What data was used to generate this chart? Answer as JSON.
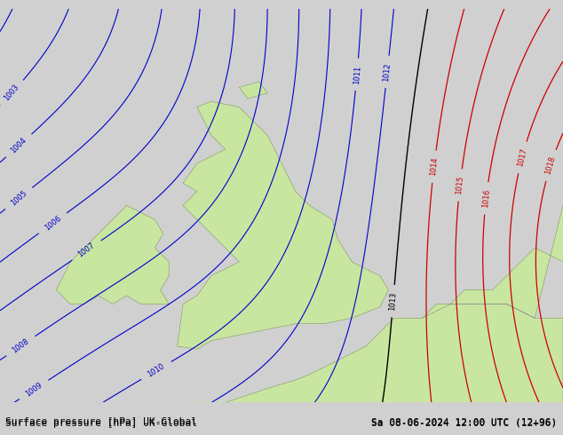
{
  "title_left": "Surface pressure [hPa] UK-Global",
  "title_right": "Sa 08-06-2024 12:00 UTC (12+96)",
  "bg_color": "#d0d0d0",
  "land_color": "#c8e6a0",
  "sea_color": "#d8d8d8",
  "blue_isobar_color": "#0000cc",
  "red_isobar_color": "#cc0000",
  "black_isobar_color": "#000000",
  "font_size_labels": 8,
  "font_size_title": 8
}
